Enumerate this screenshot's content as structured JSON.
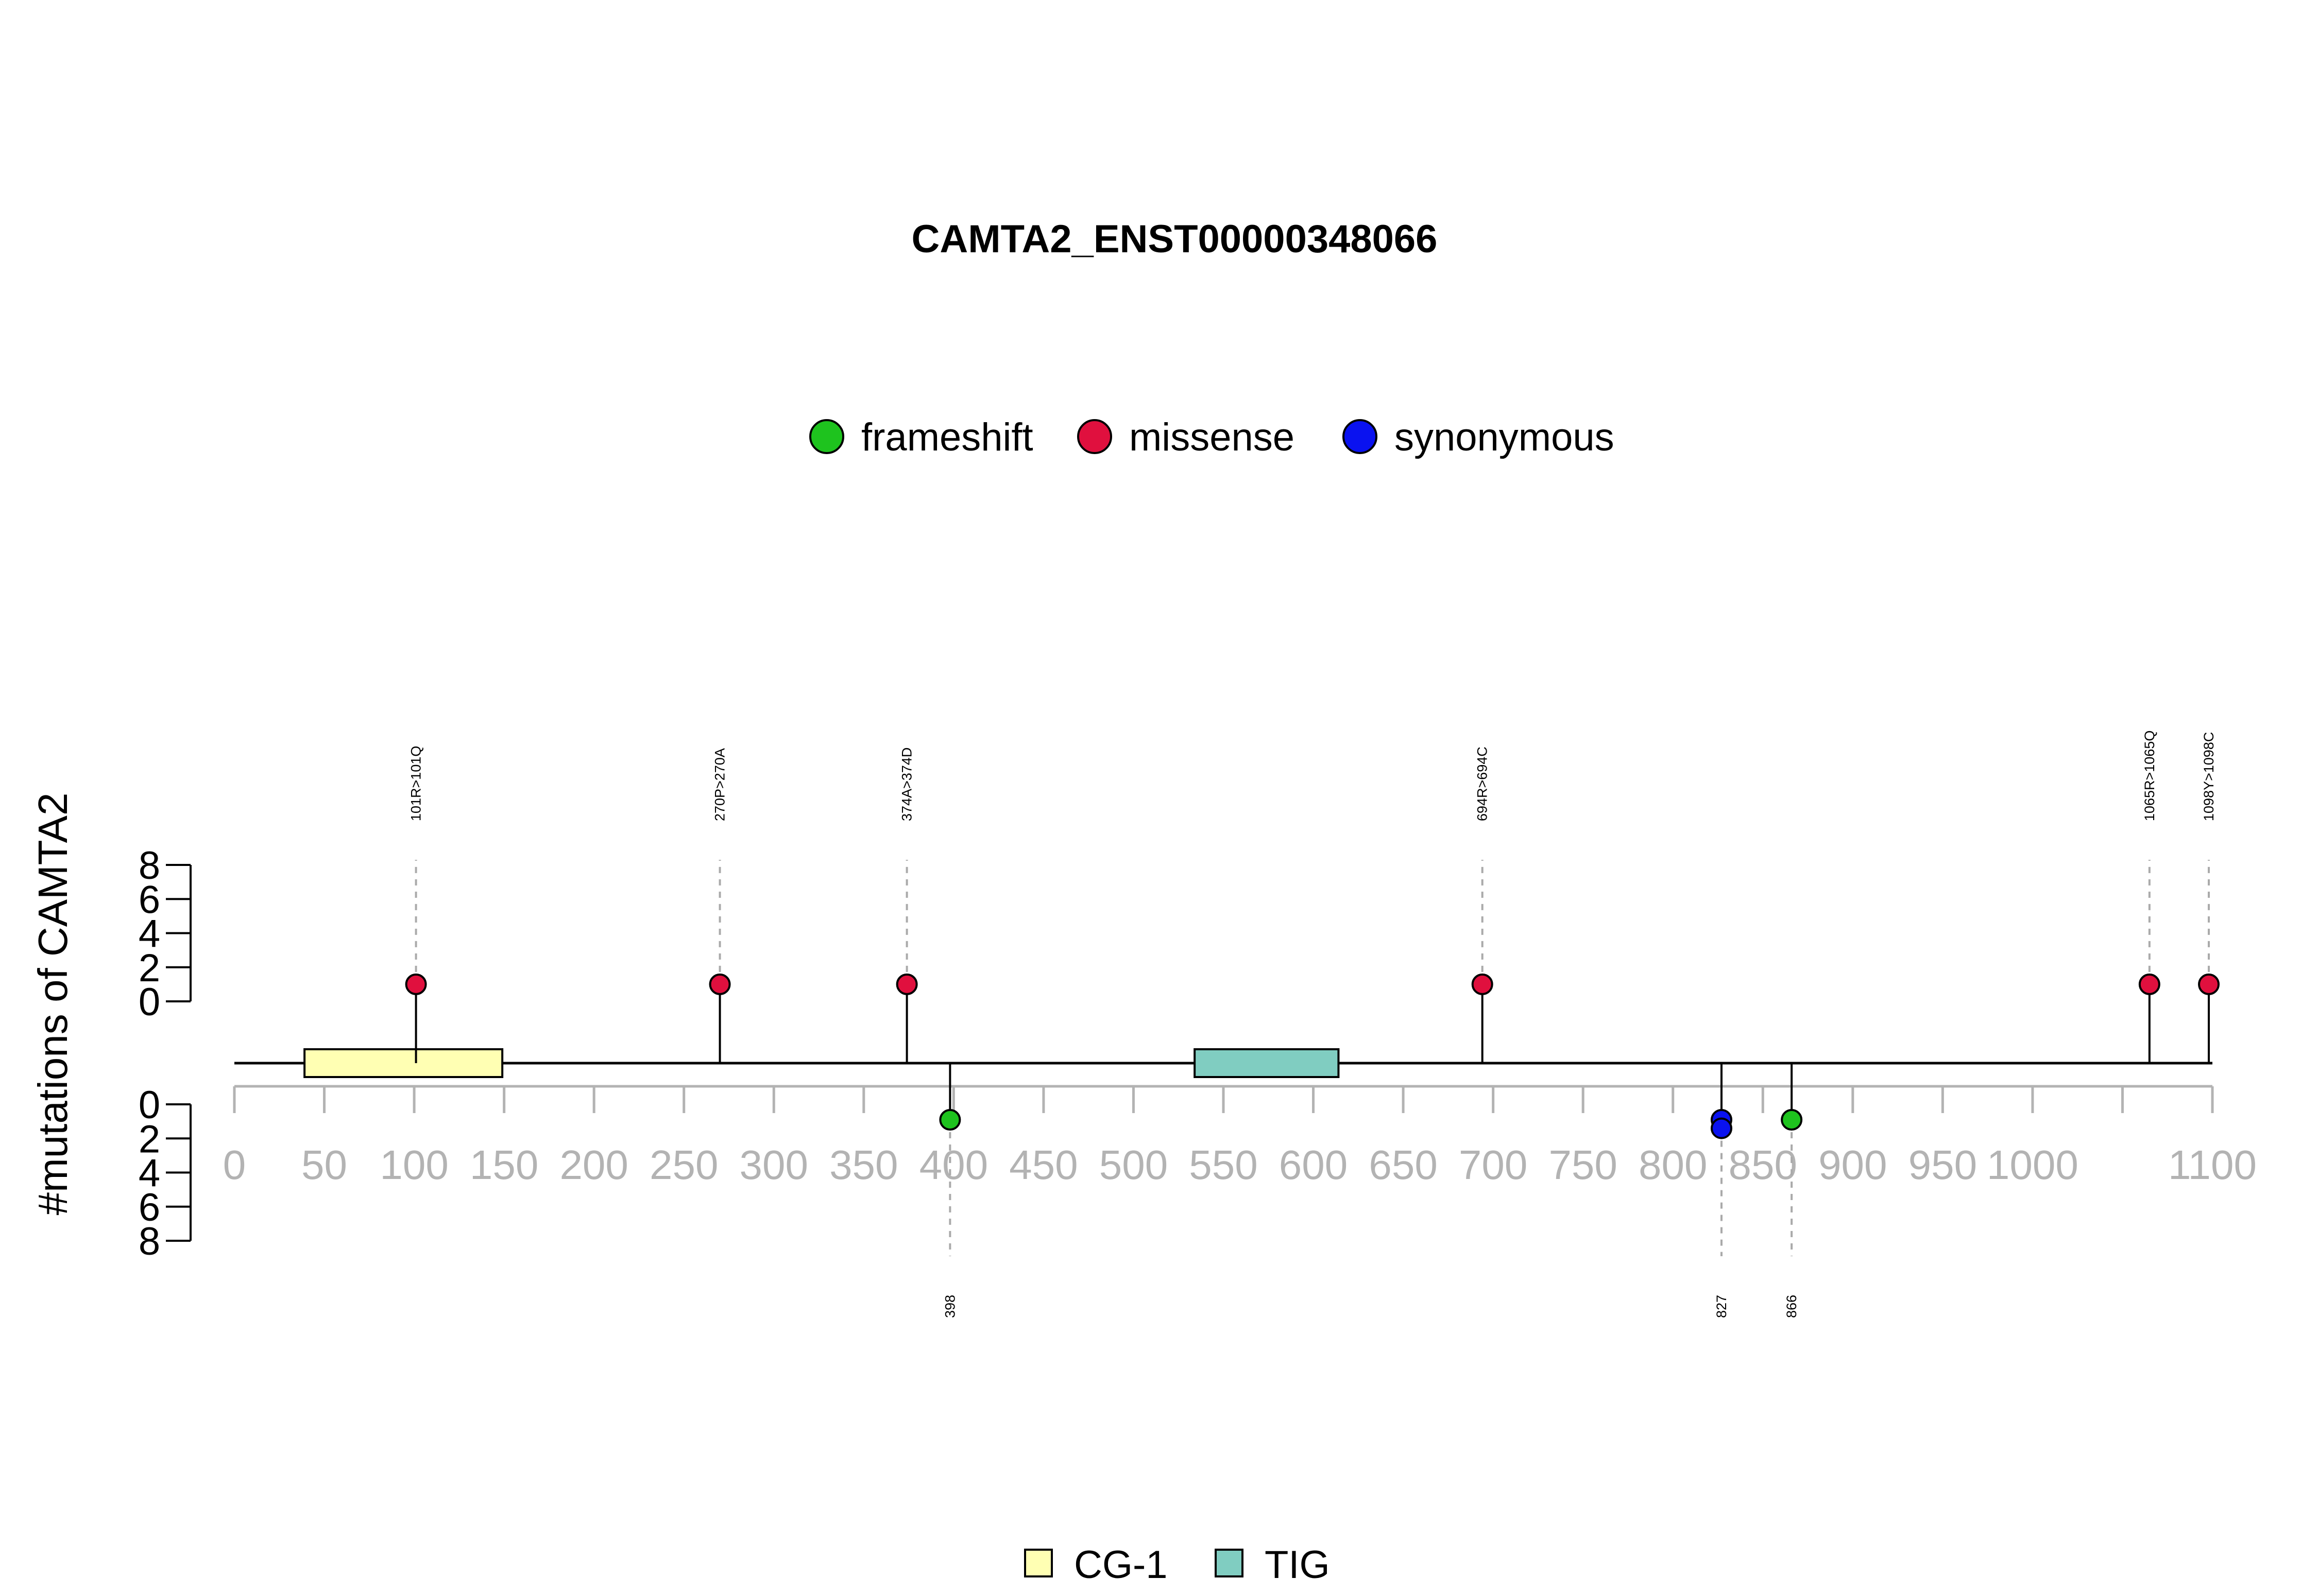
{
  "chart_data": {
    "type": "lollipop",
    "title": "CAMTA2_ENST00000348066",
    "ylabel": "#mutations of CAMTA2",
    "xlim": [
      0,
      1100
    ],
    "x_ticks": [
      0,
      50,
      100,
      150,
      200,
      250,
      300,
      350,
      400,
      450,
      500,
      550,
      600,
      650,
      700,
      750,
      800,
      850,
      900,
      950,
      1000,
      1100
    ],
    "upper_axis": {
      "ticks": [
        8,
        6,
        4,
        2,
        0
      ],
      "ylim": [
        0,
        8
      ]
    },
    "lower_axis": {
      "ticks": [
        0,
        2,
        4,
        6,
        8
      ],
      "ylim": [
        0,
        8
      ]
    },
    "mutation_legend": [
      {
        "name": "frameshift",
        "color": "#1ec31e"
      },
      {
        "name": "missense",
        "color": "#e0103e"
      },
      {
        "name": "synonymous",
        "color": "#0a12f0"
      }
    ],
    "upper_mutations": [
      {
        "position": 101,
        "label": "101R>101Q",
        "type": "missense",
        "count": 1
      },
      {
        "position": 270,
        "label": "270P>270A",
        "type": "missense",
        "count": 1
      },
      {
        "position": 374,
        "label": "374A>374D",
        "type": "missense",
        "count": 1
      },
      {
        "position": 694,
        "label": "694R>694C",
        "type": "missense",
        "count": 1
      },
      {
        "position": 1065,
        "label": "1065R>1065Q",
        "type": "missense",
        "count": 1
      },
      {
        "position": 1098,
        "label": "1098Y>1098C",
        "type": "missense",
        "count": 1
      }
    ],
    "lower_mutations": [
      {
        "position": 398,
        "label": "398",
        "types": [
          "frameshift"
        ]
      },
      {
        "position": 827,
        "label": "827",
        "types": [
          "synonymous",
          "synonymous"
        ]
      },
      {
        "position": 866,
        "label": "866",
        "types": [
          "frameshift"
        ]
      }
    ],
    "domains": [
      {
        "name": "CG-1",
        "start": 39,
        "end": 149,
        "color": "#ffffb3"
      },
      {
        "name": "TIG",
        "start": 534,
        "end": 614,
        "color": "#80cdc1"
      }
    ],
    "protein_length": 1100
  }
}
